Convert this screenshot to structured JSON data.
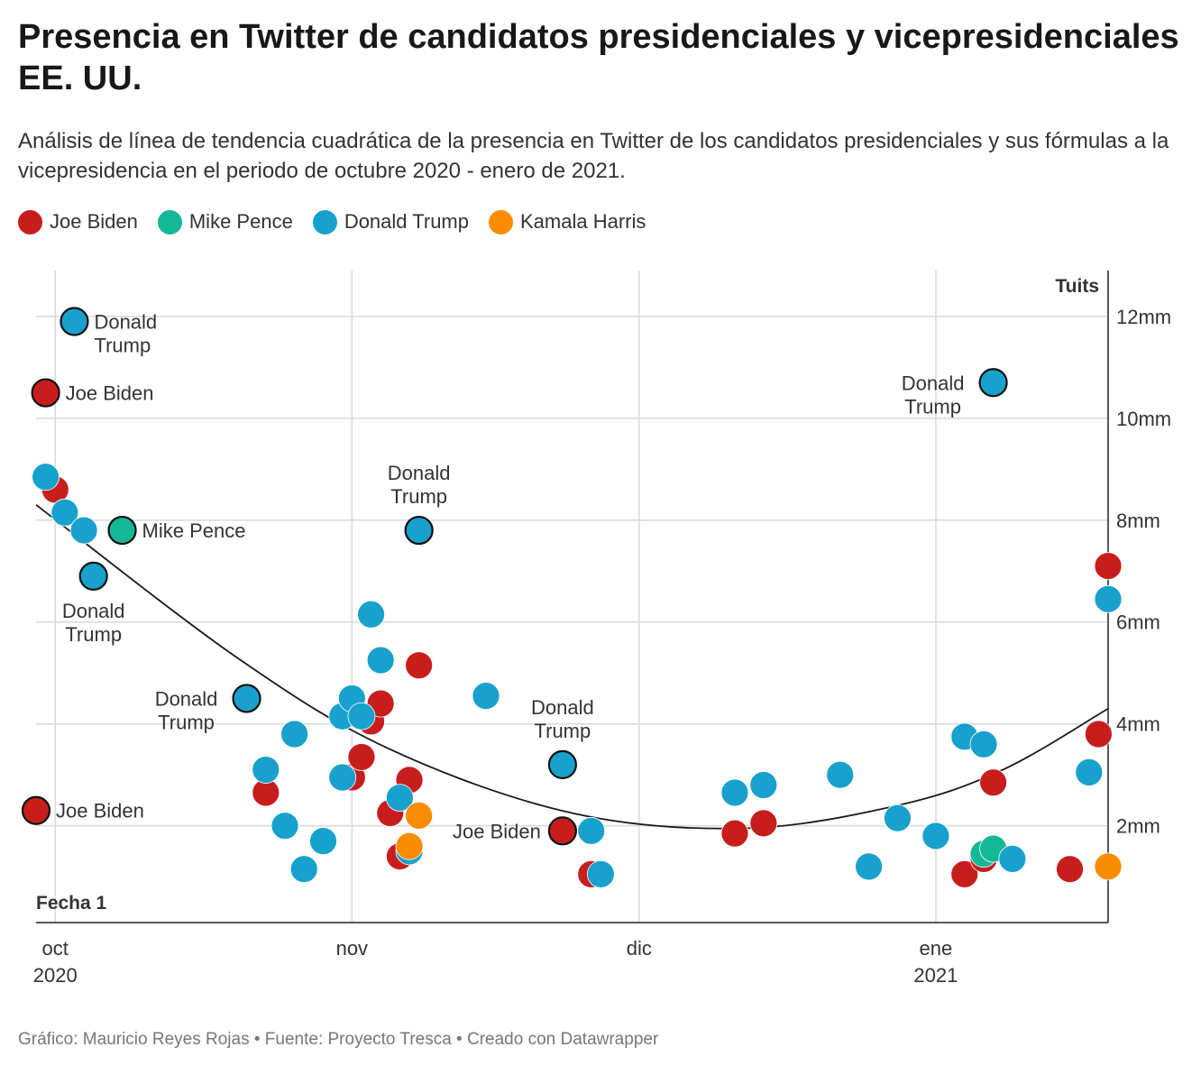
{
  "title": "Presencia en Twitter de candidatos presidenciales y vicepresidenciales EE. UU.",
  "subtitle": "Análisis de línea de tendencia cuadrática de la presencia en Twitter de los candidatos presidenciales y sus fórmulas a la vicepresidencia en el periodo de octubre 2020 - enero de 2021.",
  "footer": "Gráfico: Mauricio Reyes Rojas • Fuente: Proyecto Tresca • Creado con Datawrapper",
  "legend": [
    {
      "name": "Joe Biden",
      "color": "#c71e1d"
    },
    {
      "name": "Mike Pence",
      "color": "#15b896"
    },
    {
      "name": "Donald Trump",
      "color": "#18a1cd"
    },
    {
      "name": "Kamala Harris",
      "color": "#fa8c00"
    }
  ],
  "chart_data": {
    "type": "scatter",
    "xlabel": "Fecha 1",
    "ylabel": "Tuits",
    "x_ticks": [
      {
        "date": "2020-10-01",
        "label": "oct",
        "sublabel": "2020"
      },
      {
        "date": "2020-11-01",
        "label": "nov",
        "sublabel": ""
      },
      {
        "date": "2020-12-01",
        "label": "dic",
        "sublabel": ""
      },
      {
        "date": "2021-01-01",
        "label": "ene",
        "sublabel": "2021"
      }
    ],
    "xlim": [
      "2020-09-29",
      "2021-01-19"
    ],
    "y_ticks": [
      {
        "value": 2000000,
        "label": "2mm"
      },
      {
        "value": 4000000,
        "label": "4mm"
      },
      {
        "value": 6000000,
        "label": "6mm"
      },
      {
        "value": 8000000,
        "label": "8mm"
      },
      {
        "value": 10000000,
        "label": "10mm"
      },
      {
        "value": 12000000,
        "label": "12mm"
      }
    ],
    "ylim": [
      100000,
      12900000
    ],
    "grid": true,
    "y_axis_position": "right",
    "trendline": {
      "type": "quadratic",
      "points": [
        {
          "x": "2020-09-29",
          "y": 8300000
        },
        {
          "x": "2020-10-20",
          "y": 5300000
        },
        {
          "x": "2020-11-05",
          "y": 3500000
        },
        {
          "x": "2020-11-24",
          "y": 2250000
        },
        {
          "x": "2020-12-12",
          "y": 1950000
        },
        {
          "x": "2020-12-28",
          "y": 2400000
        },
        {
          "x": "2021-01-08",
          "y": 3100000
        },
        {
          "x": "2021-01-19",
          "y": 4300000
        }
      ]
    },
    "series": [
      {
        "name": "Joe Biden",
        "color": "#c71e1d",
        "points": [
          {
            "x": "2020-09-30",
            "y": 10500000,
            "label": "Joe Biden",
            "highlighted": true
          },
          {
            "x": "2020-09-29",
            "y": 2300000,
            "label": "Joe Biden",
            "highlighted": true
          },
          {
            "x": "2020-10-01",
            "y": 8600000
          },
          {
            "x": "2020-10-23",
            "y": 2650000
          },
          {
            "x": "2020-11-01",
            "y": 2950000
          },
          {
            "x": "2020-11-02",
            "y": 3350000
          },
          {
            "x": "2020-11-03",
            "y": 4050000
          },
          {
            "x": "2020-11-04",
            "y": 4400000
          },
          {
            "x": "2020-11-05",
            "y": 2250000
          },
          {
            "x": "2020-11-06",
            "y": 1400000
          },
          {
            "x": "2020-11-07",
            "y": 2900000
          },
          {
            "x": "2020-11-08",
            "y": 5150000
          },
          {
            "x": "2020-11-23",
            "y": 1900000,
            "label": "Joe Biden",
            "highlighted": true
          },
          {
            "x": "2020-11-26",
            "y": 1050000
          },
          {
            "x": "2020-12-11",
            "y": 1850000
          },
          {
            "x": "2020-12-14",
            "y": 2050000
          },
          {
            "x": "2021-01-04",
            "y": 1050000
          },
          {
            "x": "2021-01-06",
            "y": 1350000
          },
          {
            "x": "2021-01-07",
            "y": 2850000
          },
          {
            "x": "2021-01-15",
            "y": 1150000
          },
          {
            "x": "2021-01-18",
            "y": 3800000
          },
          {
            "x": "2021-01-19",
            "y": 7100000
          }
        ]
      },
      {
        "name": "Mike Pence",
        "color": "#15b896",
        "points": [
          {
            "x": "2020-10-08",
            "y": 7800000,
            "label": "Mike Pence",
            "highlighted": true
          },
          {
            "x": "2021-01-06",
            "y": 1450000
          },
          {
            "x": "2021-01-07",
            "y": 1550000
          }
        ]
      },
      {
        "name": "Donald Trump",
        "color": "#18a1cd",
        "points": [
          {
            "x": "2020-10-03",
            "y": 11900000,
            "label": "Donald Trump",
            "highlighted": true
          },
          {
            "x": "2020-09-30",
            "y": 8850000
          },
          {
            "x": "2020-10-02",
            "y": 8150000
          },
          {
            "x": "2020-10-04",
            "y": 7800000
          },
          {
            "x": "2020-10-05",
            "y": 6900000,
            "label": "Donald Trump",
            "highlighted": true
          },
          {
            "x": "2020-10-21",
            "y": 4500000,
            "label": "Donald Trump",
            "highlighted": true
          },
          {
            "x": "2020-10-23",
            "y": 3100000
          },
          {
            "x": "2020-10-25",
            "y": 2000000
          },
          {
            "x": "2020-10-26",
            "y": 3800000
          },
          {
            "x": "2020-10-27",
            "y": 1150000
          },
          {
            "x": "2020-10-29",
            "y": 1700000
          },
          {
            "x": "2020-10-31",
            "y": 4150000
          },
          {
            "x": "2020-11-01",
            "y": 4500000
          },
          {
            "x": "2020-10-31",
            "y": 2950000
          },
          {
            "x": "2020-11-02",
            "y": 4150000
          },
          {
            "x": "2020-11-03",
            "y": 6150000
          },
          {
            "x": "2020-11-04",
            "y": 5250000
          },
          {
            "x": "2020-11-06",
            "y": 2550000
          },
          {
            "x": "2020-11-07",
            "y": 1500000
          },
          {
            "x": "2020-11-08",
            "y": 7800000,
            "label": "Donald Trump",
            "highlighted": true
          },
          {
            "x": "2020-11-15",
            "y": 4550000
          },
          {
            "x": "2020-11-23",
            "y": 3200000,
            "label": "Donald Trump",
            "highlighted": true
          },
          {
            "x": "2020-11-26",
            "y": 1900000
          },
          {
            "x": "2020-11-27",
            "y": 1050000
          },
          {
            "x": "2020-12-11",
            "y": 2650000
          },
          {
            "x": "2020-12-14",
            "y": 2800000
          },
          {
            "x": "2020-12-22",
            "y": 3000000
          },
          {
            "x": "2020-12-25",
            "y": 1200000
          },
          {
            "x": "2020-12-28",
            "y": 2150000
          },
          {
            "x": "2021-01-01",
            "y": 1800000
          },
          {
            "x": "2021-01-04",
            "y": 3750000
          },
          {
            "x": "2021-01-06",
            "y": 3600000
          },
          {
            "x": "2021-01-07",
            "y": 10700000,
            "label": "Donald Trump",
            "highlighted": true
          },
          {
            "x": "2021-01-09",
            "y": 1350000
          },
          {
            "x": "2021-01-17",
            "y": 3050000
          },
          {
            "x": "2021-01-19",
            "y": 6450000
          }
        ]
      },
      {
        "name": "Kamala Harris",
        "color": "#fa8c00",
        "points": [
          {
            "x": "2020-11-07",
            "y": 1600000
          },
          {
            "x": "2020-11-08",
            "y": 2200000
          },
          {
            "x": "2021-01-19",
            "y": 1200000
          }
        ]
      }
    ]
  }
}
